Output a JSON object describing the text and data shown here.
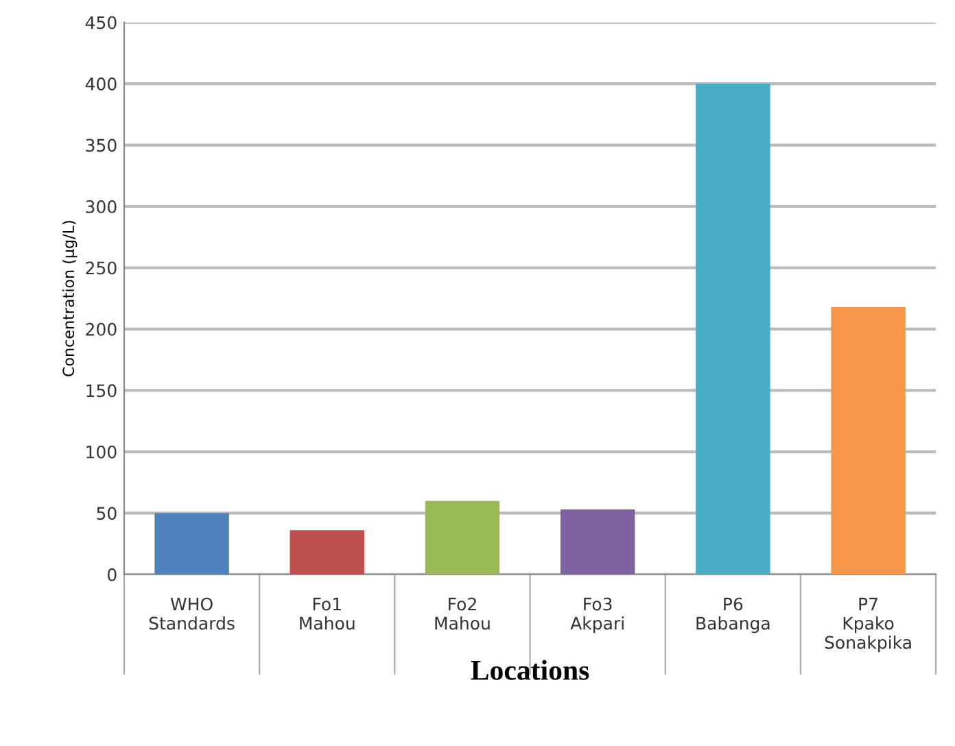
{
  "chart_data": {
    "type": "bar",
    "categories": [
      "WHO\nStandards",
      "Fo1\nMahou",
      "Fo2\nMahou",
      "Fo3\nAkpari",
      "P6\nBabanga",
      "P7\nKpako\nSonakpika"
    ],
    "values": [
      50,
      36,
      60,
      53,
      400,
      218
    ],
    "colors": [
      "#4f81bd",
      "#c0504d",
      "#9bbb59",
      "#8064a2",
      "#4bacc6",
      "#f79646"
    ],
    "ylim": [
      0,
      450
    ],
    "yticks": [
      0,
      50,
      100,
      150,
      200,
      250,
      300,
      350,
      400,
      450
    ],
    "grid": "y",
    "xlabel": "Locations",
    "ylabel": "Concentration (µg/L)"
  }
}
